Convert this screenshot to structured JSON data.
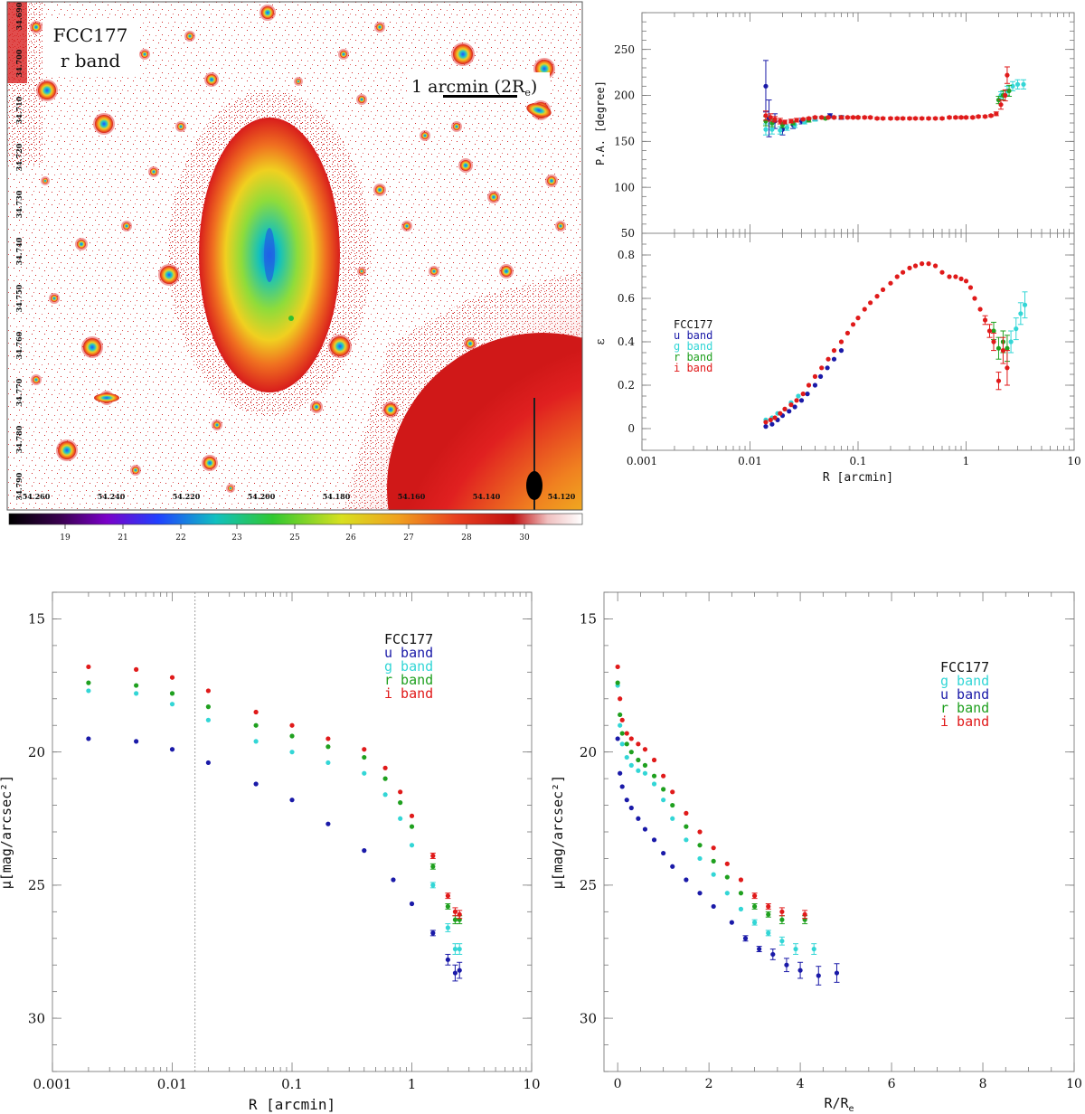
{
  "image_panel": {
    "label_line1": "FCC177",
    "label_line2": "r band",
    "scalebar_label": "1 arcmin (2R",
    "scalebar_sub": "e",
    "scalebar_close": ")",
    "colorbar_ticks": [
      "19",
      "21",
      "22",
      "23",
      "25",
      "26",
      "27",
      "28",
      "30"
    ],
    "ra_ticks": [
      "54.260",
      "54.240",
      "54.220",
      "54.200",
      "54.180",
      "54.160",
      "54.140",
      "54.120"
    ],
    "dec_ticks": [
      "34.690",
      "34.700",
      "34.710",
      "34.720",
      "34.730",
      "34.740",
      "34.750",
      "34.760",
      "34.770",
      "34.780",
      "34.790"
    ]
  },
  "colors": {
    "u": "#1a1aa8",
    "g": "#33d6d6",
    "r": "#1fa01f",
    "i": "#e01a1a",
    "frame": "#777777"
  },
  "chart_data": [
    {
      "id": "pa",
      "type": "scatter",
      "title": "",
      "xlabel": "",
      "ylabel": "P.A. [degree]",
      "xscale": "log",
      "xlim": [
        0.001,
        10
      ],
      "ylim": [
        50,
        290
      ],
      "yticks": [
        50,
        100,
        150,
        200,
        250
      ],
      "series": [
        {
          "name": "u band",
          "color_key": "u",
          "x": [
            0.014,
            0.015,
            0.017,
            0.02,
            0.025,
            0.03,
            0.04,
            0.055,
            0.07
          ],
          "y": [
            210,
            175,
            172,
            163,
            168,
            172,
            175,
            178,
            176
          ],
          "err": [
            28,
            20,
            8,
            6,
            4,
            3,
            2,
            2,
            2
          ]
        },
        {
          "name": "g band",
          "color_key": "g",
          "x": [
            0.014,
            0.016,
            0.019,
            0.022,
            0.026,
            0.032,
            0.04,
            0.06,
            2.1,
            2.4,
            2.7,
            3.0,
            3.4
          ],
          "y": [
            163,
            163,
            162,
            165,
            168,
            171,
            174,
            176,
            200,
            205,
            210,
            212,
            212
          ],
          "err": [
            6,
            5,
            4,
            3,
            3,
            2,
            2,
            1,
            4,
            5,
            5,
            5,
            5
          ]
        },
        {
          "name": "r band",
          "color_key": "r",
          "x": [
            0.014,
            0.016,
            0.02,
            0.025,
            0.035,
            0.05,
            0.07,
            0.1,
            2.0,
            2.2,
            2.5
          ],
          "y": [
            172,
            170,
            168,
            170,
            173,
            175,
            176,
            176,
            195,
            200,
            205
          ],
          "err": [
            5,
            4,
            3,
            2,
            2,
            1,
            1,
            1,
            4,
            5,
            6
          ]
        },
        {
          "name": "i band",
          "color_key": "i",
          "x": [
            0.014,
            0.0155,
            0.017,
            0.019,
            0.021,
            0.024,
            0.027,
            0.031,
            0.035,
            0.04,
            0.046,
            0.053,
            0.06,
            0.07,
            0.08,
            0.09,
            0.1,
            0.115,
            0.13,
            0.15,
            0.17,
            0.2,
            0.23,
            0.26,
            0.3,
            0.34,
            0.39,
            0.45,
            0.52,
            0.6,
            0.7,
            0.8,
            0.9,
            1.0,
            1.15,
            1.3,
            1.5,
            1.7,
            1.9,
            2.1,
            2.3,
            2.4
          ],
          "y": [
            178,
            176,
            174,
            172,
            171,
            172,
            173,
            174,
            175,
            176,
            176,
            176,
            176,
            176,
            176,
            176,
            176,
            176,
            176,
            175,
            175,
            175,
            175,
            175,
            175,
            175,
            175,
            175,
            175,
            175,
            176,
            176,
            176,
            176,
            176,
            177,
            177,
            178,
            180,
            190,
            200,
            222
          ],
          "err": [
            5,
            4,
            3,
            3,
            2,
            2,
            2,
            1,
            1,
            1,
            1,
            1,
            1,
            1,
            1,
            1,
            1,
            1,
            1,
            1,
            1,
            1,
            1,
            1,
            1,
            1,
            1,
            1,
            1,
            1,
            1,
            1,
            1,
            1,
            1,
            1,
            1,
            1,
            2,
            5,
            6,
            9
          ]
        }
      ]
    },
    {
      "id": "ellipticity",
      "type": "scatter",
      "title": "",
      "xlabel": "R [arcmin]",
      "ylabel": "ε",
      "xscale": "log",
      "xlim": [
        0.001,
        10
      ],
      "ylim": [
        -0.1,
        0.9
      ],
      "xtick_labels": [
        "0.001",
        "0.01",
        "0.1",
        "1",
        "10"
      ],
      "yticks": [
        0,
        0.2,
        0.4,
        0.6,
        0.8
      ],
      "legend": [
        "FCC177",
        "u band",
        "g band",
        "r band",
        "i band"
      ],
      "series": [
        {
          "name": "u band",
          "color_key": "u",
          "x": [
            0.014,
            0.016,
            0.018,
            0.02,
            0.023,
            0.026,
            0.03,
            0.034,
            0.04,
            0.045,
            0.052,
            0.06,
            0.07
          ],
          "y": [
            0.01,
            0.02,
            0.04,
            0.06,
            0.08,
            0.1,
            0.13,
            0.16,
            0.2,
            0.24,
            0.28,
            0.32,
            0.36
          ],
          "err": []
        },
        {
          "name": "g band",
          "color_key": "g",
          "x": [
            0.014,
            0.016,
            0.018,
            0.021,
            0.024,
            0.028,
            2.6,
            2.9,
            3.2,
            3.5
          ],
          "y": [
            0.04,
            0.05,
            0.07,
            0.09,
            0.12,
            0.15,
            0.4,
            0.46,
            0.53,
            0.57
          ],
          "err": [
            0,
            0,
            0,
            0,
            0,
            0,
            0.05,
            0.05,
            0.05,
            0.06
          ]
        },
        {
          "name": "r band",
          "color_key": "r",
          "x": [
            1.8,
            2.0,
            2.2,
            2.4
          ],
          "y": [
            0.45,
            0.37,
            0.4,
            0.37
          ],
          "err": [
            0.04,
            0.05,
            0.05,
            0.06
          ]
        },
        {
          "name": "i band",
          "color_key": "i",
          "x": [
            0.014,
            0.0155,
            0.017,
            0.019,
            0.021,
            0.024,
            0.027,
            0.031,
            0.035,
            0.04,
            0.046,
            0.053,
            0.06,
            0.07,
            0.08,
            0.09,
            0.1,
            0.115,
            0.13,
            0.15,
            0.17,
            0.2,
            0.23,
            0.26,
            0.3,
            0.34,
            0.39,
            0.45,
            0.52,
            0.6,
            0.7,
            0.8,
            0.9,
            1.0,
            1.1,
            1.2,
            1.35,
            1.5,
            1.65,
            1.8,
            2.0,
            2.2,
            2.4
          ],
          "y": [
            0.03,
            0.04,
            0.05,
            0.07,
            0.09,
            0.11,
            0.13,
            0.16,
            0.2,
            0.24,
            0.28,
            0.32,
            0.36,
            0.4,
            0.44,
            0.48,
            0.51,
            0.55,
            0.58,
            0.61,
            0.64,
            0.67,
            0.7,
            0.72,
            0.74,
            0.75,
            0.76,
            0.76,
            0.75,
            0.72,
            0.7,
            0.7,
            0.69,
            0.68,
            0.65,
            0.6,
            0.55,
            0.5,
            0.45,
            0.4,
            0.22,
            0.36,
            0.28
          ],
          "err": [
            0,
            0,
            0,
            0,
            0,
            0,
            0,
            0,
            0,
            0,
            0,
            0,
            0,
            0,
            0,
            0,
            0,
            0,
            0,
            0,
            0,
            0,
            0,
            0,
            0,
            0,
            0,
            0,
            0,
            0,
            0,
            0,
            0,
            0,
            0,
            0,
            0,
            0.02,
            0.03,
            0.04,
            0.04,
            0.06,
            0.08
          ]
        }
      ]
    },
    {
      "id": "profile_arcmin",
      "type": "scatter",
      "title": "",
      "xlabel": "R [arcmin]",
      "ylabel": "μ[mag/arcsec²]",
      "xscale": "log",
      "xlim": [
        0.001,
        10
      ],
      "ylim": [
        32,
        14
      ],
      "xtick_labels": [
        "0.001",
        "0.01",
        "0.1",
        "1",
        "10"
      ],
      "yticks": [
        15,
        20,
        25,
        30
      ],
      "vline_x": 0.0155,
      "legend": [
        "FCC177",
        "u band",
        "g band",
        "r band",
        "i band"
      ],
      "series": [
        {
          "name": "u band",
          "color_key": "u",
          "x": [
            0.002,
            0.005,
            0.01,
            0.02,
            0.05,
            0.1,
            0.2,
            0.4,
            0.7,
            1.0,
            1.5,
            2.0,
            2.3,
            2.5
          ],
          "y": [
            19.5,
            19.6,
            19.9,
            20.4,
            21.2,
            21.8,
            22.7,
            23.7,
            24.8,
            25.7,
            26.8,
            27.8,
            28.3,
            28.2
          ],
          "err": [
            0,
            0,
            0,
            0,
            0,
            0,
            0,
            0,
            0,
            0,
            0.1,
            0.2,
            0.3,
            0.3
          ]
        },
        {
          "name": "g band",
          "color_key": "g",
          "x": [
            0.002,
            0.005,
            0.01,
            0.02,
            0.05,
            0.1,
            0.2,
            0.4,
            0.6,
            0.8,
            1.0,
            1.5,
            2.0,
            2.3,
            2.5
          ],
          "y": [
            17.7,
            17.8,
            18.2,
            18.8,
            19.6,
            20.0,
            20.4,
            20.8,
            21.6,
            22.5,
            23.5,
            25.0,
            26.6,
            27.4,
            27.4
          ],
          "err": [
            0,
            0,
            0,
            0,
            0,
            0,
            0,
            0,
            0,
            0,
            0,
            0.1,
            0.15,
            0.2,
            0.2
          ]
        },
        {
          "name": "r band",
          "color_key": "r",
          "x": [
            0.002,
            0.005,
            0.01,
            0.02,
            0.05,
            0.1,
            0.2,
            0.4,
            0.6,
            0.8,
            1.0,
            1.5,
            2.0,
            2.3,
            2.5
          ],
          "y": [
            17.4,
            17.5,
            17.8,
            18.3,
            19.0,
            19.4,
            19.8,
            20.2,
            21.0,
            21.9,
            22.8,
            24.3,
            25.8,
            26.3,
            26.3
          ],
          "err": [
            0,
            0,
            0,
            0,
            0,
            0,
            0,
            0,
            0,
            0,
            0,
            0.1,
            0.1,
            0.15,
            0.15
          ]
        },
        {
          "name": "i band",
          "color_key": "i",
          "x": [
            0.002,
            0.005,
            0.01,
            0.02,
            0.05,
            0.1,
            0.2,
            0.4,
            0.6,
            0.8,
            1.0,
            1.5,
            2.0,
            2.3,
            2.5
          ],
          "y": [
            16.8,
            16.9,
            17.2,
            17.7,
            18.5,
            19.0,
            19.5,
            19.9,
            20.6,
            21.5,
            22.4,
            23.9,
            25.4,
            26.0,
            26.1
          ],
          "err": [
            0,
            0,
            0,
            0,
            0,
            0,
            0,
            0,
            0,
            0,
            0,
            0.1,
            0.1,
            0.15,
            0.15
          ]
        }
      ]
    },
    {
      "id": "profile_re",
      "type": "scatter",
      "title": "",
      "xlabel": "R/R",
      "xlabel_sub": "e",
      "ylabel": "μ[mag/arcsec²]",
      "xscale": "linear",
      "xlim": [
        -0.3,
        10
      ],
      "ylim": [
        32,
        14
      ],
      "xtick_labels": [
        "0",
        "2",
        "4",
        "6",
        "8",
        "10"
      ],
      "yticks": [
        15,
        20,
        25,
        30
      ],
      "legend": [
        "FCC177",
        "g band",
        "u band",
        "r band",
        "i band"
      ],
      "series": [
        {
          "name": "g band",
          "color_key": "g",
          "x": [
            0.0,
            0.05,
            0.1,
            0.2,
            0.3,
            0.45,
            0.6,
            0.8,
            1.0,
            1.2,
            1.5,
            1.8,
            2.1,
            2.4,
            2.7,
            3.0,
            3.3,
            3.6,
            3.9,
            4.3
          ],
          "y": [
            17.5,
            19.0,
            19.7,
            20.2,
            20.5,
            20.7,
            20.8,
            21.2,
            21.8,
            22.5,
            23.3,
            24.0,
            24.6,
            25.3,
            25.9,
            26.4,
            26.8,
            27.1,
            27.4,
            27.4
          ],
          "err": [
            0,
            0,
            0,
            0,
            0,
            0,
            0,
            0,
            0,
            0,
            0,
            0,
            0,
            0,
            0,
            0.1,
            0.1,
            0.15,
            0.2,
            0.2
          ]
        },
        {
          "name": "u band",
          "color_key": "u",
          "x": [
            0.0,
            0.05,
            0.1,
            0.2,
            0.3,
            0.45,
            0.6,
            0.8,
            1.0,
            1.2,
            1.5,
            1.8,
            2.1,
            2.5,
            2.8,
            3.1,
            3.4,
            3.7,
            4.0,
            4.4,
            4.8
          ],
          "y": [
            19.5,
            20.8,
            21.3,
            21.8,
            22.1,
            22.5,
            22.9,
            23.3,
            23.8,
            24.3,
            24.8,
            25.3,
            25.8,
            26.4,
            27.0,
            27.4,
            27.6,
            28.0,
            28.2,
            28.4,
            28.3
          ],
          "err": [
            0,
            0,
            0,
            0,
            0,
            0,
            0,
            0,
            0,
            0,
            0,
            0,
            0,
            0,
            0.1,
            0.1,
            0.2,
            0.25,
            0.3,
            0.35,
            0.35
          ]
        },
        {
          "name": "r band",
          "color_key": "r",
          "x": [
            0.0,
            0.05,
            0.1,
            0.2,
            0.3,
            0.45,
            0.6,
            0.8,
            1.0,
            1.2,
            1.5,
            1.8,
            2.1,
            2.4,
            2.7,
            3.0,
            3.3,
            3.6,
            4.1
          ],
          "y": [
            17.4,
            18.6,
            19.3,
            19.7,
            20.0,
            20.3,
            20.5,
            20.9,
            21.4,
            22.0,
            22.8,
            23.5,
            24.1,
            24.7,
            25.3,
            25.8,
            26.1,
            26.3,
            26.3
          ],
          "err": [
            0,
            0,
            0,
            0,
            0,
            0,
            0,
            0,
            0,
            0,
            0,
            0,
            0,
            0,
            0,
            0.1,
            0.1,
            0.15,
            0.15
          ]
        },
        {
          "name": "i band",
          "color_key": "i",
          "x": [
            0.0,
            0.05,
            0.1,
            0.2,
            0.3,
            0.45,
            0.6,
            0.8,
            1.0,
            1.2,
            1.5,
            1.8,
            2.1,
            2.4,
            2.7,
            3.0,
            3.3,
            3.6,
            4.1
          ],
          "y": [
            16.8,
            18.0,
            18.8,
            19.3,
            19.5,
            19.7,
            19.9,
            20.3,
            20.9,
            21.5,
            22.3,
            23.0,
            23.6,
            24.2,
            24.8,
            25.4,
            25.8,
            26.0,
            26.1
          ],
          "err": [
            0,
            0,
            0,
            0,
            0,
            0,
            0,
            0,
            0,
            0,
            0,
            0,
            0,
            0,
            0,
            0.1,
            0.1,
            0.15,
            0.15
          ]
        }
      ]
    }
  ]
}
